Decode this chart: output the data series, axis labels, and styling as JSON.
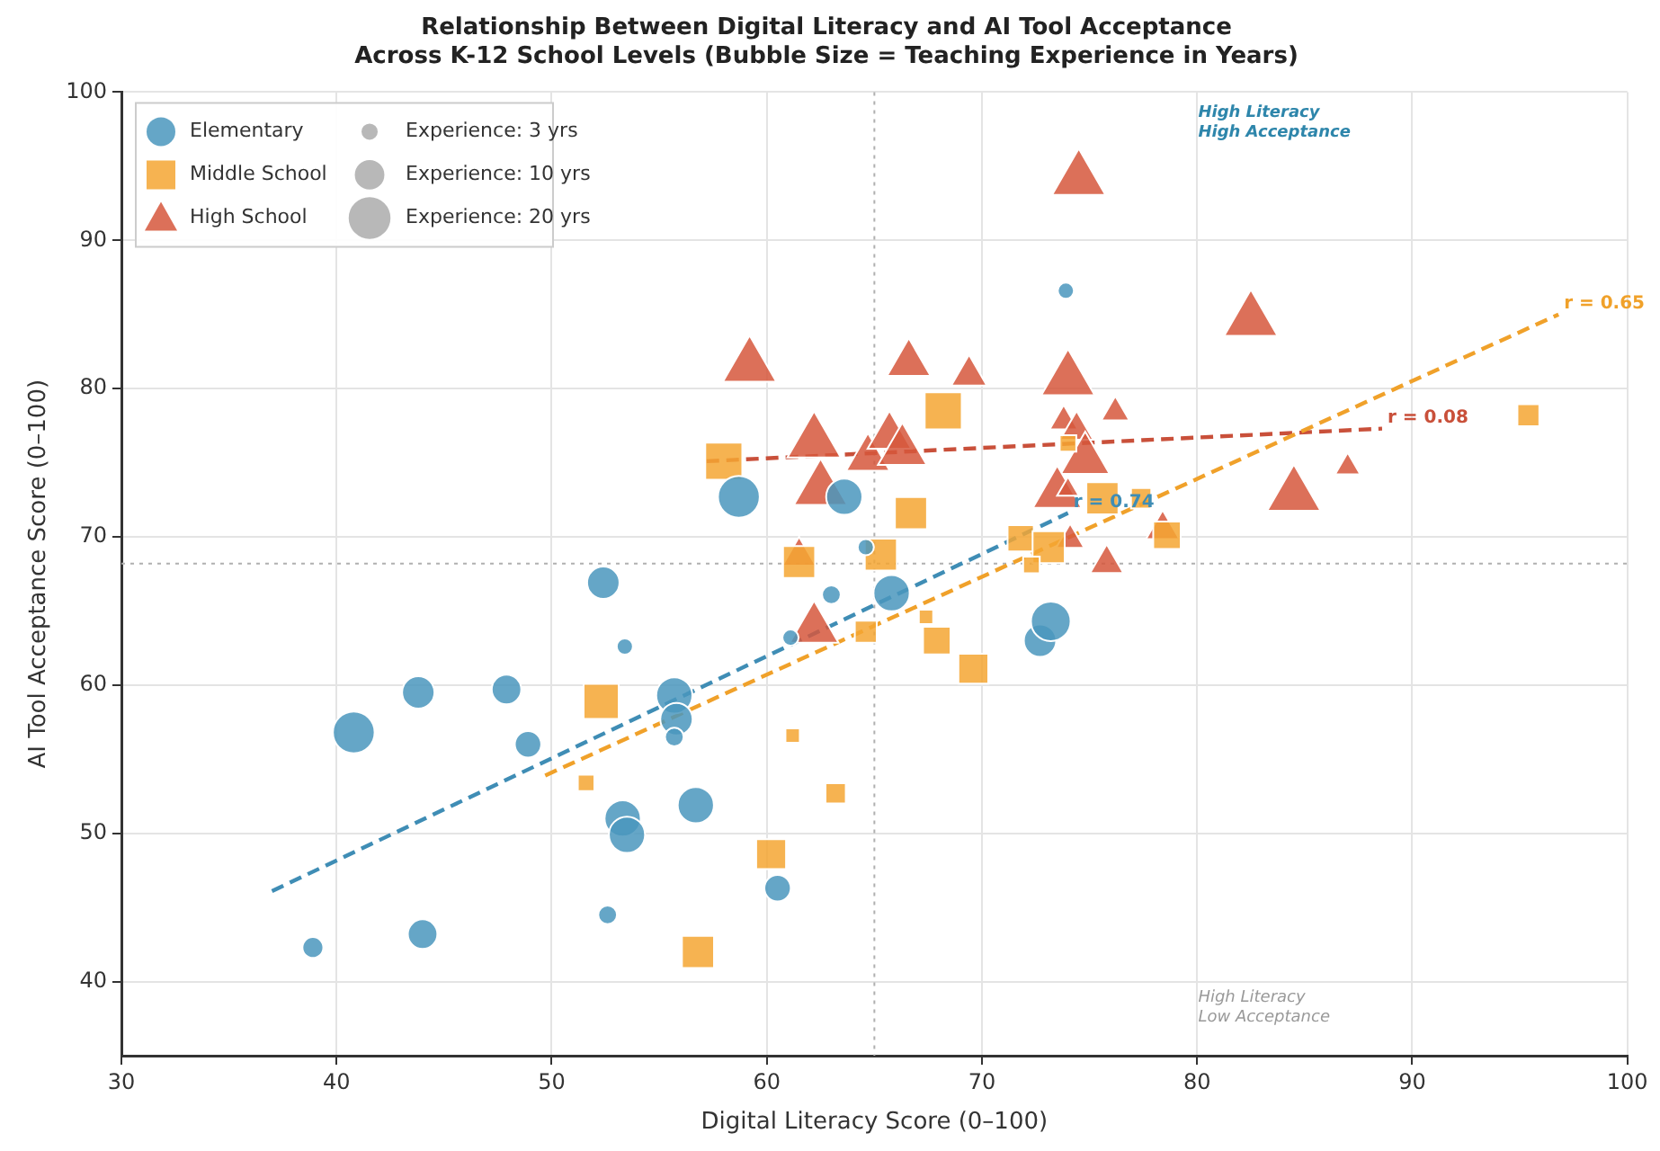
{
  "chart_data": {
    "type": "bubble",
    "title": "Relationship Between Digital Literacy and AI Tool Acceptance\nAcross K-12 School Levels (Bubble Size = Teaching Experience in Years)",
    "xlabel": "Digital Literacy Score (0–100)",
    "ylabel": "AI Tool Acceptance Score (0–100)",
    "xlim": [
      30,
      100
    ],
    "xticks": [
      30,
      40,
      50,
      60,
      70,
      80,
      90,
      100
    ],
    "ylim": [
      35,
      100
    ],
    "yticks": [
      40,
      50,
      60,
      70,
      80,
      90,
      100
    ],
    "grid": true,
    "legend": "top left",
    "size_legend": [
      {
        "value": 3,
        "label": "Experience: 3 yrs"
      },
      {
        "value": 10,
        "label": "Experience: 10 yrs"
      },
      {
        "value": 20,
        "label": "Experience: 20 yrs"
      }
    ],
    "series": [
      {
        "name": "Elementary",
        "marker": "circle",
        "color": "#4a97bd",
        "x": [
          38.9,
          44.0,
          40.8,
          43.8,
          47.9,
          48.9,
          52.4,
          53.4,
          52.6,
          53.3,
          53.5,
          55.7,
          55.8,
          55.7,
          56.7,
          60.5,
          61.1,
          63.0,
          65.8,
          64.6,
          72.7,
          73.2,
          58.7,
          63.6,
          73.9
        ],
        "values": [
          42.3,
          43.2,
          56.8,
          59.5,
          59.7,
          56.0,
          66.9,
          62.6,
          44.5,
          51.0,
          49.9,
          59.3,
          57.7,
          56.5,
          51.9,
          46.3,
          63.2,
          66.1,
          66.2,
          69.3,
          63.0,
          64.3,
          72.7,
          72.7,
          86.6
        ],
        "sizes": [
          5,
          10,
          20,
          12,
          10,
          8,
          12,
          3,
          4,
          15,
          15,
          15,
          12,
          4,
          15,
          8,
          3,
          4,
          15,
          3,
          12,
          18,
          20,
          15,
          3
        ]
      },
      {
        "name": "Middle School",
        "marker": "square",
        "color": "#f5a632",
        "x": [
          52.3,
          51.6,
          61.2,
          63.2,
          60.2,
          56.8,
          64.6,
          67.4,
          67.9,
          69.6,
          61.5,
          65.3,
          58.0,
          68.2,
          66.7,
          71.8,
          73.1,
          75.6,
          77.4,
          74.0,
          72.3,
          95.4,
          78.6
        ],
        "values": [
          58.9,
          53.4,
          56.6,
          52.7,
          48.6,
          42.0,
          63.6,
          64.6,
          63.0,
          61.1,
          68.3,
          68.8,
          75.1,
          78.5,
          71.6,
          69.9,
          69.3,
          72.6,
          72.6,
          76.3,
          68.1,
          78.2,
          70.1
        ],
        "sizes": [
          18,
          4,
          3,
          6,
          13,
          15,
          7,
          3,
          11,
          13,
          15,
          15,
          20,
          20,
          15,
          10,
          15,
          15,
          6,
          4,
          4,
          7,
          11
        ]
      },
      {
        "name": "High School",
        "marker": "triangle",
        "color": "#d6573c",
        "x": [
          74.5,
          59.2,
          66.6,
          69.4,
          74.0,
          62.2,
          64.7,
          65.7,
          66.3,
          62.5,
          73.8,
          74.4,
          74.8,
          76.2,
          73.5,
          74.0,
          74.1,
          61.5,
          62.2,
          75.8,
          82.5,
          84.5,
          87.0,
          78.4
        ],
        "values": [
          94.1,
          81.5,
          81.7,
          80.9,
          80.6,
          76.4,
          75.3,
          76.8,
          75.8,
          73.2,
          77.8,
          77.2,
          75.2,
          78.4,
          72.9,
          73.2,
          69.8,
          68.7,
          63.8,
          68.2,
          84.6,
          72.8,
          74.7,
          70.5
        ],
        "sizes": [
          18,
          18,
          12,
          8,
          18,
          18,
          12,
          12,
          15,
          18,
          5,
          7,
          15,
          5,
          15,
          3,
          5,
          7,
          15,
          7,
          18,
          18,
          4,
          7
        ]
      },
      {
        "type": "line",
        "line_style": "dashed",
        "marker": "none",
        "color": "#3f8db5",
        "x": [
          37.0,
          74.0
        ],
        "values": [
          46.1,
          71.6
        ]
      },
      {
        "type": "line",
        "line_style": "dashed",
        "marker": "none",
        "color": "#f0a12a",
        "x": [
          49.7,
          96.8
        ],
        "values": [
          53.9,
          85.0
        ]
      },
      {
        "type": "line",
        "line_style": "dashed",
        "marker": "none",
        "color": "#c9503a",
        "x": [
          57.2,
          88.6
        ],
        "values": [
          75.1,
          77.3
        ]
      }
    ],
    "ref_lines": [
      {
        "axis": "x",
        "value": 65,
        "color": "#b0b0b0",
        "line_style": "dotted"
      },
      {
        "axis": "y",
        "value": 68.2,
        "color": "#b0b0b0",
        "line_style": "dotted"
      }
    ],
    "annotations": [
      {
        "text": "r = 0.74",
        "x": 74.0,
        "y": 71.6
      },
      {
        "text": "r = 0.65",
        "x": 96.8,
        "y": 85.0
      },
      {
        "text": "r = 0.08",
        "x": 88.6,
        "y": 77.3
      },
      "High Literacy\nHigh Acceptance",
      "High Literacy\nLow Acceptance"
    ]
  }
}
